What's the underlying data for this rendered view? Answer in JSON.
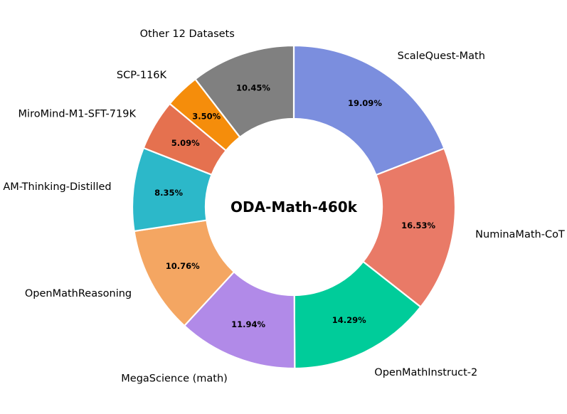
{
  "chart_data": {
    "type": "pie",
    "subtype": "donut",
    "title": "ODA-Math-460k",
    "start": "top",
    "direction": "clockwise",
    "slices": [
      {
        "label": "ScaleQuest-Math",
        "value": 19.09,
        "display": "19.09%",
        "color": "#7b8ede"
      },
      {
        "label": "NuminaMath-CoT",
        "value": 16.53,
        "display": "16.53%",
        "color": "#e97a67"
      },
      {
        "label": "OpenMathInstruct-2",
        "value": 14.29,
        "display": "14.29%",
        "color": "#00cc9a"
      },
      {
        "label": "MegaScience (math)",
        "value": 11.94,
        "display": "11.94%",
        "color": "#b18ae8"
      },
      {
        "label": "OpenMathReasoning",
        "value": 10.76,
        "display": "10.76%",
        "color": "#f4a662"
      },
      {
        "label": "AM-Thinking-Distilled",
        "value": 8.35,
        "display": "8.35%",
        "color": "#2cb8c9"
      },
      {
        "label": "MiroMind-M1-SFT-719K",
        "value": 5.09,
        "display": "5.09%",
        "color": "#e5714f"
      },
      {
        "label": "SCP-116K",
        "value": 3.5,
        "display": "3.50%",
        "color": "#f58d0b"
      },
      {
        "label": "Other 12 Datasets",
        "value": 10.45,
        "display": "10.45%",
        "color": "#808080"
      }
    ]
  }
}
